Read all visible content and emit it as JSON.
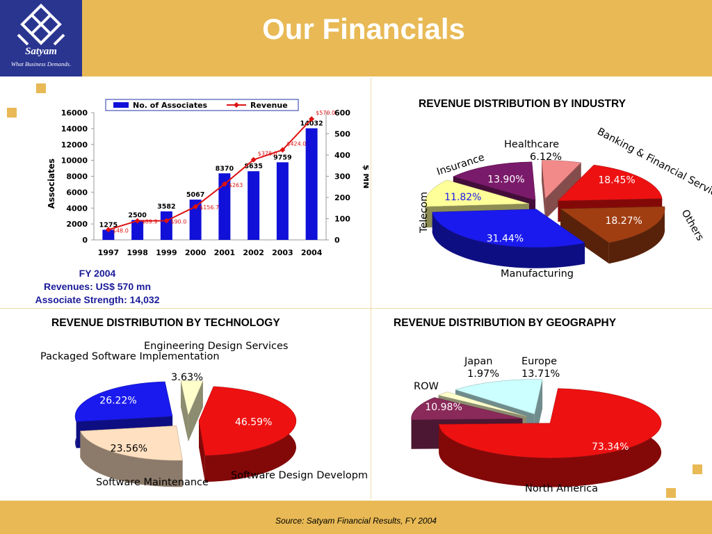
{
  "logo": {
    "name": "Satyam",
    "tagline": "What Business Demands."
  },
  "title": "Our Financials",
  "fy_summary": {
    "line1": "FY  2004",
    "line2": "Revenues: US$ 570 mn",
    "line3": "Associate Strength: 14,032"
  },
  "source": "Source: Satyam Financial Results, FY 2004",
  "colors": {
    "header": "#e8b955",
    "logo_bg": "#2a3590",
    "bars": "#1010d8",
    "revenue_line": "#dd1111"
  },
  "chart_data": [
    {
      "type": "bar",
      "categories": [
        "1997",
        "1998",
        "1999",
        "2000",
        "2001",
        "2002",
        "2003",
        "2004"
      ],
      "series": [
        {
          "name": "No. of Associates",
          "values": [
            1275,
            2500,
            3582,
            5067,
            8370,
            8635,
            9759,
            14032
          ],
          "labels": [
            "1275",
            "2500",
            "3582",
            "5067",
            "8370",
            "8635",
            "9759",
            "14032"
          ]
        },
        {
          "name": "Revenue",
          "type": "line",
          "axis": "right",
          "values": [
            48.0,
            89.9,
            90.0,
            156.7,
            263.0,
            378.0,
            424.0,
            570.0
          ],
          "labels": [
            "$48.0",
            "$89.9",
            "$90.0",
            "$156.7",
            "$263",
            "$378.0",
            "$424.0",
            "$570.0"
          ]
        }
      ],
      "ylabel": "Associates",
      "y2label": "$ MN",
      "ylim": [
        0,
        16000
      ],
      "y2lim": [
        0,
        600
      ],
      "yticks": [
        "0",
        "2000",
        "4000",
        "6000",
        "8000",
        "10000",
        "12000",
        "14000",
        "16000"
      ],
      "y2ticks": [
        "0",
        "100",
        "200",
        "300",
        "400",
        "500",
        "600"
      ],
      "legend": "top"
    },
    {
      "type": "pie",
      "title": "REVENUE DISTRIBUTION BY INDUSTRY",
      "slices": [
        {
          "label": "Banking & Financial Services",
          "value": 18.45,
          "display": "18.45%",
          "color": "#ee1111"
        },
        {
          "label": "Others",
          "value": 18.27,
          "display": "18.27%",
          "color": "#a03e12"
        },
        {
          "label": "Manufacturing",
          "value": 31.44,
          "display": "31.44%",
          "color": "#1a1aee"
        },
        {
          "label": "Telecom",
          "value": 11.82,
          "display": "11.82%",
          "color": "#ffff99"
        },
        {
          "label": "Insurance",
          "value": 13.9,
          "display": "13.90%",
          "color": "#7a1a6a"
        },
        {
          "label": "Healthcare",
          "value": 6.12,
          "display": "6.12%",
          "color": "#f28a8a"
        }
      ]
    },
    {
      "type": "pie",
      "title": "REVENUE DISTRIBUTION BY TECHNOLOGY",
      "slices": [
        {
          "label": "Software Design Development",
          "value": 46.59,
          "display": "46.59%",
          "color": "#ee1111"
        },
        {
          "label": "Software Maintenance",
          "value": 23.56,
          "display": "23.56%",
          "color": "#ffe0c0"
        },
        {
          "label": "Packaged Software Implementation",
          "value": 26.22,
          "display": "26.22%",
          "color": "#1a1aee"
        },
        {
          "label": "Engineering Design Services",
          "value": 3.63,
          "display": "3.63%",
          "color": "#ffffcc"
        }
      ]
    },
    {
      "type": "pie",
      "title": "REVENUE DISTRIBUTION BY GEOGRAPHY",
      "slices": [
        {
          "label": "North America",
          "value": 73.34,
          "display": "73.34%",
          "color": "#ee1111"
        },
        {
          "label": "ROW",
          "value": 10.98,
          "display": "10.98%",
          "color": "#8a2a5a"
        },
        {
          "label": "Japan",
          "value": 1.97,
          "display": "1.97%",
          "color": "#ffffcc"
        },
        {
          "label": "Europe",
          "value": 13.71,
          "display": "13.71%",
          "color": "#ccffff"
        }
      ]
    }
  ]
}
